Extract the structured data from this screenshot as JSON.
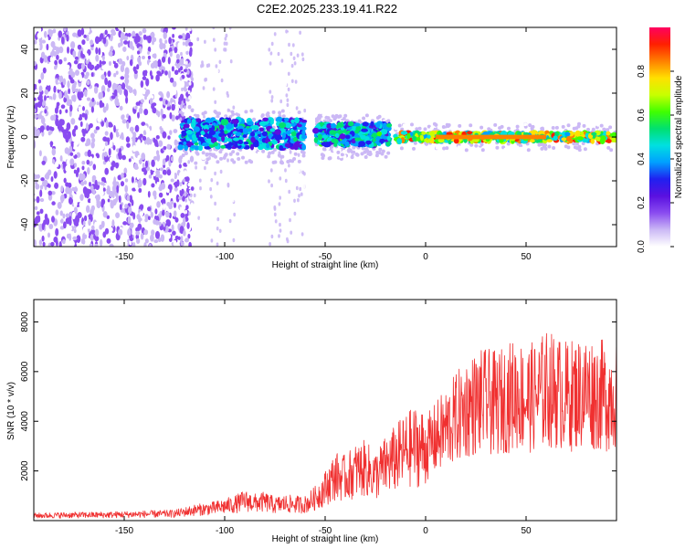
{
  "title": "C2E2.2025.233.19.41.R22",
  "colors": {
    "snr_line": "#f03030",
    "axis": "#000000",
    "background": "#ffffff",
    "colormap": [
      "#ffffff",
      "#cbb8f5",
      "#8a4cf0",
      "#5a10e0",
      "#2020f0",
      "#00a0ff",
      "#00e0e0",
      "#00e070",
      "#40ff00",
      "#c8ff00",
      "#ffe000",
      "#ff8000",
      "#ff2000",
      "#ff0060"
    ]
  },
  "chart_data": [
    {
      "type": "heatmap",
      "title": "",
      "xlabel": "Height of straight line (km)",
      "ylabel": "Frequency (Hz)",
      "xlim": [
        -195,
        95
      ],
      "ylim": [
        -50,
        50
      ],
      "xticks": [
        -150,
        -100,
        -50,
        0,
        50
      ],
      "xtick_labels": [
        "-150",
        "-100",
        "-50",
        "0",
        "50"
      ],
      "yticks": [
        -40,
        -20,
        0,
        20,
        40
      ],
      "ytick_labels": [
        "-40",
        "-20",
        "0",
        "20",
        "40"
      ],
      "description_regions": [
        {
          "x_range": [
            -195,
            -122
          ],
          "freq_range": [
            -50,
            50
          ],
          "amplitude": 0.15,
          "note": "scattered noise"
        },
        {
          "x_range": [
            -122,
            -60
          ],
          "freq_range": [
            -5,
            8
          ],
          "amplitude": 0.45
        },
        {
          "x_range": [
            -55,
            -18
          ],
          "freq_range": [
            -4,
            6
          ],
          "amplitude": 0.5
        },
        {
          "x_range": [
            -15,
            95
          ],
          "freq_range": [
            -2,
            2
          ],
          "amplitude": 0.9
        }
      ],
      "colorbar": {
        "label": "Normalized spectral amplitude",
        "range": [
          0,
          1
        ],
        "ticks": [
          0.0,
          0.2,
          0.4,
          0.6,
          0.8
        ],
        "tick_labels": [
          "0.0",
          "0.2",
          "0.4",
          "0.6",
          "0.8"
        ]
      }
    },
    {
      "type": "line",
      "title": "",
      "xlabel": "Height of straight line (km)",
      "ylabel": "SNR (10 * v/v)",
      "xlim": [
        -195,
        95
      ],
      "ylim": [
        0,
        8900
      ],
      "xticks": [
        -150,
        -100,
        -50,
        0,
        50
      ],
      "xtick_labels": [
        "-150",
        "-100",
        "-50",
        "0",
        "50"
      ],
      "yticks": [
        2000,
        4000,
        6000,
        8000
      ],
      "ytick_labels": [
        "2000",
        "4000",
        "6000",
        "8000"
      ],
      "series": [
        {
          "name": "SNR",
          "x": [
            -195,
            -180,
            -160,
            -140,
            -125,
            -115,
            -105,
            -95,
            -90,
            -85,
            -80,
            -75,
            -70,
            -65,
            -60,
            -55,
            -50,
            -45,
            -40,
            -35,
            -30,
            -25,
            -20,
            -15,
            -10,
            -5,
            0,
            5,
            10,
            15,
            20,
            25,
            30,
            35,
            40,
            45,
            50,
            55,
            60,
            65,
            70,
            75,
            80,
            85,
            90,
            95
          ],
          "y": [
            200,
            220,
            230,
            260,
            280,
            420,
            500,
            650,
            800,
            700,
            750,
            620,
            680,
            650,
            650,
            900,
            1300,
            1800,
            1700,
            2000,
            2100,
            1800,
            2200,
            2500,
            2800,
            3000,
            2900,
            3300,
            3700,
            4100,
            4500,
            4700,
            4800,
            4700,
            4900,
            5100,
            4900,
            5000,
            5300,
            5200,
            5000,
            5100,
            5200,
            5100,
            5000,
            5200
          ]
        }
      ]
    }
  ]
}
